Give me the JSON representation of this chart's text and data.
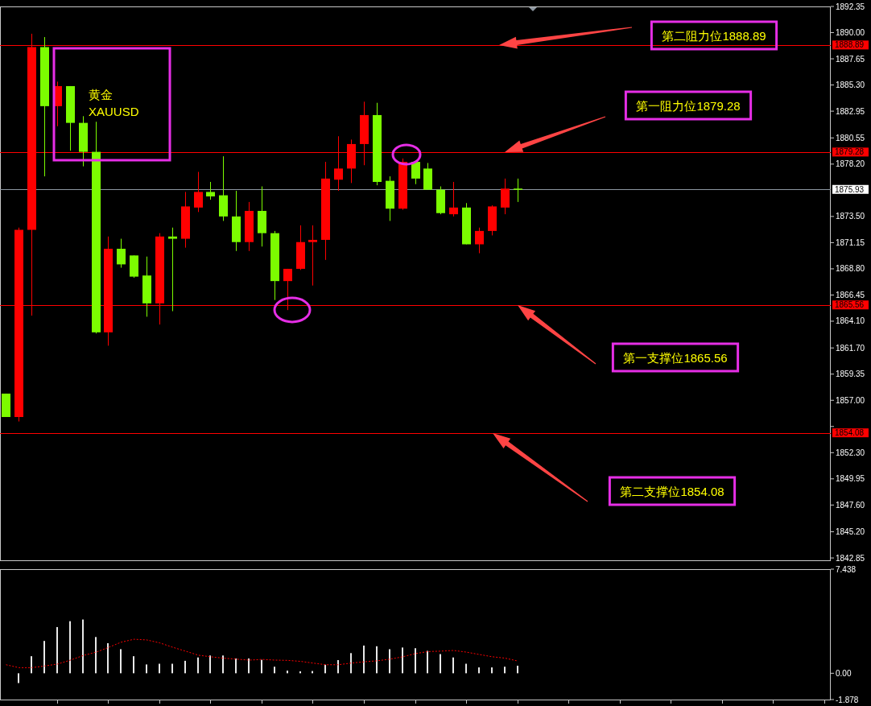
{
  "chart_data": [
    {
      "type": "candlestick",
      "title": "黄金\nXAUUSD",
      "categories": [
        null,
        null,
        null,
        null,
        null,
        null,
        null,
        null,
        null,
        null,
        null,
        null,
        null,
        null,
        null,
        null,
        null,
        null,
        null,
        null,
        null,
        null,
        null,
        null,
        null,
        null,
        null,
        null,
        null,
        null,
        null,
        null,
        null,
        null,
        null,
        null,
        null,
        null,
        null,
        null,
        null,
        null,
        null,
        null,
        null,
        null,
        null,
        null,
        null,
        null,
        null,
        null,
        null,
        null,
        null,
        null,
        null,
        null,
        null,
        null,
        null,
        null,
        null,
        null,
        null
      ],
      "ohlc": [
        [
          1857.6,
          1857.6,
          1855.5,
          1855.5
        ],
        [
          1855.5,
          1872.5,
          1855.1,
          1872.3
        ],
        [
          1872.3,
          1889.9,
          1864.6,
          1888.7
        ],
        [
          1888.7,
          1889.6,
          1877.1,
          1883.4
        ],
        [
          1883.4,
          1885.6,
          1881.6,
          1885.2
        ],
        [
          1885.2,
          1885.2,
          1879.4,
          1881.9
        ],
        [
          1881.9,
          1882.5,
          1878.0,
          1879.3
        ],
        [
          1879.3,
          1882.0,
          1863.0,
          1863.1
        ],
        [
          1863.1,
          1871.7,
          1861.9,
          1870.6
        ],
        [
          1870.6,
          1871.5,
          1868.9,
          1869.2
        ],
        [
          1870.0,
          1870.0,
          1868.0,
          1868.1
        ],
        [
          1868.2,
          1869.9,
          1864.5,
          1865.7
        ],
        [
          1865.7,
          1872.0,
          1863.8,
          1871.7
        ],
        [
          1871.7,
          1872.5,
          1865.0,
          1871.5
        ],
        [
          1871.5,
          1875.7,
          1870.7,
          1874.4
        ],
        [
          1874.3,
          1877.5,
          1873.9,
          1875.7
        ],
        [
          1875.7,
          1876.6,
          1875.0,
          1875.3
        ],
        [
          1875.4,
          1878.9,
          1873.1,
          1873.5
        ],
        [
          1873.5,
          1875.8,
          1870.4,
          1871.2
        ],
        [
          1871.2,
          1874.8,
          1870.4,
          1874.0
        ],
        [
          1874.0,
          1876.2,
          1870.8,
          1872.0
        ],
        [
          1872.0,
          1872.2,
          1866.0,
          1867.7
        ],
        [
          1867.7,
          1868.8,
          1865.1,
          1868.8
        ],
        [
          1868.8,
          1872.7,
          1868.7,
          1871.2
        ],
        [
          1871.2,
          1872.7,
          1867.3,
          1871.4
        ],
        [
          1871.4,
          1878.4,
          1869.6,
          1876.9
        ],
        [
          1876.8,
          1880.7,
          1875.8,
          1877.8
        ],
        [
          1877.8,
          1880.4,
          1876.5,
          1880.0
        ],
        [
          1880.0,
          1883.8,
          1878.1,
          1882.6
        ],
        [
          1882.6,
          1883.7,
          1876.3,
          1876.6
        ],
        [
          1876.7,
          1877.1,
          1873.1,
          1874.2
        ],
        [
          1874.2,
          1878.7,
          1874.1,
          1878.4
        ],
        [
          1878.4,
          1878.5,
          1876.4,
          1876.9
        ],
        [
          1877.8,
          1878.3,
          1875.9,
          1875.9
        ],
        [
          1875.9,
          1876.2,
          1873.7,
          1873.8
        ],
        [
          1873.7,
          1876.6,
          1873.5,
          1874.3
        ],
        [
          1874.3,
          1874.7,
          1871.0,
          1871.0
        ],
        [
          1871.0,
          1872.5,
          1870.2,
          1872.2
        ],
        [
          1872.2,
          1874.5,
          1871.8,
          1874.4
        ],
        [
          1874.3,
          1876.9,
          1873.7,
          1876.0
        ],
        [
          1876.0,
          1876.9,
          1874.8,
          1875.9
        ],
        null,
        null,
        null,
        null,
        null,
        null,
        null,
        null,
        null,
        null,
        null,
        null,
        null,
        null,
        null,
        null,
        null,
        null,
        null,
        null,
        null,
        null,
        null,
        null
      ],
      "colors": [
        "#7cfc00",
        "#ff0000",
        "#ff0000",
        "#7cfc00",
        "#ff0000",
        "#7cfc00",
        "#7cfc00",
        "#7cfc00",
        "#ff0000",
        "#7cfc00",
        "#7cfc00",
        "#7cfc00",
        "#ff0000",
        "#7cfc00",
        "#ff0000",
        "#ff0000",
        "#7cfc00",
        "#7cfc00",
        "#7cfc00",
        "#ff0000",
        "#7cfc00",
        "#7cfc00",
        "#ff0000",
        "#ff0000",
        "#ff0000",
        "#ff0000",
        "#ff0000",
        "#ff0000",
        "#ff0000",
        "#7cfc00",
        "#7cfc00",
        "#ff0000",
        "#7cfc00",
        "#7cfc00",
        "#7cfc00",
        "#ff0000",
        "#7cfc00",
        "#ff0000",
        "#ff0000",
        "#ff0000",
        "#7cfc00",
        null,
        null,
        null,
        null,
        null,
        null,
        null,
        null,
        null,
        null,
        null,
        null,
        null,
        null,
        null,
        null,
        null,
        null,
        null,
        null,
        null,
        null,
        null,
        null
      ],
      "ylim": [
        1842.64,
        1892.35
      ],
      "yticks": [
        1892.35,
        {
          "value": 1890,
          "label": "1890.00"
        },
        1887.65,
        {
          "value": 1885.3,
          "label": "1885.30"
        },
        1882.95,
        1880.55,
        {
          "value": 1878.2,
          "label": "1878.20"
        },
        {
          "value": 1873.5,
          "label": "1873.50"
        },
        1871.15,
        {
          "value": 1868.8,
          "label": "1868.80"
        },
        1866.45,
        {
          "value": 1864.1,
          "label": "1864.10"
        },
        {
          "value": 1861.7,
          "label": "1861.70"
        },
        1859.35,
        {
          "value": 1857,
          "label": "1857.00"
        },
        {
          "value": 1854.65,
          "label": null
        },
        {
          "value": 1852.3,
          "label": "1852.30"
        },
        1849.95,
        {
          "value": 1847.6,
          "label": "1847.60"
        },
        {
          "value": 1845.2,
          "label": "1845.20"
        },
        1842.85
      ],
      "tick_labels": "y",
      "ref_lines": [
        {
          "axis": "y",
          "value": 1888.89,
          "label": "1888.89",
          "color": "#ff0000"
        },
        {
          "axis": "y",
          "value": 1879.28,
          "label": "1879.28",
          "color": "#ff0000"
        },
        {
          "axis": "y",
          "value": 1875.93,
          "label": "1875.93",
          "color": "#8c96a0"
        },
        {
          "axis": "y",
          "value": 1865.56,
          "label": "1865.56",
          "color": "#ff0000"
        },
        {
          "axis": "y",
          "value": 1854.08,
          "label": "1854.08",
          "color": "#ff0000"
        }
      ],
      "annotations": [
        "第二阻力位1888.89",
        "第一阻力位1879.28",
        "第一支撑位1865.56",
        "第二支撑位1854.08"
      ]
    },
    {
      "type": "bar",
      "categories": [
        null,
        null,
        null,
        null,
        null,
        null,
        null,
        null,
        null,
        null,
        null,
        null,
        null,
        null,
        null,
        null,
        null,
        null,
        null,
        null,
        null,
        null,
        null,
        null,
        null,
        null,
        null,
        null,
        null,
        null,
        null,
        null,
        null,
        null,
        null,
        null,
        null,
        null,
        null,
        null,
        null,
        null,
        null,
        null,
        null,
        null,
        null,
        null,
        null,
        null,
        null,
        null,
        null,
        null,
        null,
        null,
        null,
        null,
        null,
        null,
        null,
        null,
        null,
        null,
        null
      ],
      "series": [
        {
          "type": "bar",
          "color": "#e8e8e8",
          "values": [
            null,
            -0.7,
            1.22,
            2.31,
            3.3,
            3.72,
            3.84,
            2.59,
            2.15,
            1.72,
            1.22,
            0.63,
            0.68,
            0.68,
            0.89,
            1.13,
            1.27,
            1.27,
            1.06,
            1.06,
            0.96,
            0.47,
            0.19,
            0.14,
            0.16,
            0.61,
            0.94,
            1.44,
            1.98,
            1.93,
            1.72,
            1.84,
            1.79,
            1.6,
            1.37,
            1.13,
            0.68,
            0.42,
            0.42,
            0.47,
            0.54,
            null,
            null,
            null,
            null,
            null,
            null,
            null,
            null,
            null,
            null,
            null,
            null,
            null,
            null,
            null,
            null,
            null,
            null,
            null,
            null,
            null,
            null,
            null,
            null
          ]
        },
        {
          "type": "line",
          "color": "#ff0000",
          "line_style": "dotted",
          "values": [
            0.61,
            0.4,
            0.4,
            0.52,
            0.66,
            0.94,
            1.27,
            1.51,
            1.84,
            2.22,
            2.43,
            2.38,
            2.17,
            1.86,
            1.58,
            1.29,
            1.18,
            1.08,
            1.01,
            0.94,
            0.99,
            0.94,
            0.92,
            0.85,
            0.73,
            0.61,
            0.61,
            0.73,
            0.82,
            0.89,
            1.01,
            1.18,
            1.41,
            1.55,
            1.58,
            1.63,
            1.51,
            1.34,
            1.18,
            1.08,
            0.87,
            null,
            null,
            null,
            null,
            null,
            null,
            null,
            null,
            null,
            null,
            null,
            null,
            null,
            null,
            null,
            null,
            null,
            null,
            null,
            null,
            null,
            null,
            null,
            null
          ]
        }
      ],
      "ylim": [
        -1.878,
        7.438
      ],
      "yticks": [
        7.438,
        {
          "value": 0,
          "label": "0.00"
        },
        {
          "value": -1.878,
          "label": "-1.878"
        }
      ],
      "tick_labels": "y"
    }
  ]
}
